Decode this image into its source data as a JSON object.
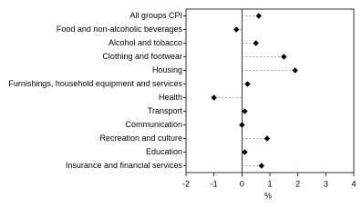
{
  "chart_data": {
    "type": "dot",
    "categories": [
      "All groups CPI",
      "Food and non-alcoholic beverages",
      "Alcohol and tobacco",
      "Clothing and footwear",
      "Housing",
      "Furnishings, household equipment and services",
      "Health",
      "Transport",
      "Communication",
      "Recreation and culture",
      "Education",
      "Insurance and financial services"
    ],
    "values": [
      0.6,
      -0.2,
      0.5,
      1.5,
      1.9,
      0.2,
      -1.0,
      0.1,
      0.0,
      0.9,
      0.1,
      0.7
    ],
    "color": "#000000",
    "xlim": [
      -2,
      4
    ],
    "xticks": [
      -2,
      -1,
      0,
      1,
      2,
      3,
      4
    ],
    "x_label": "%"
  }
}
